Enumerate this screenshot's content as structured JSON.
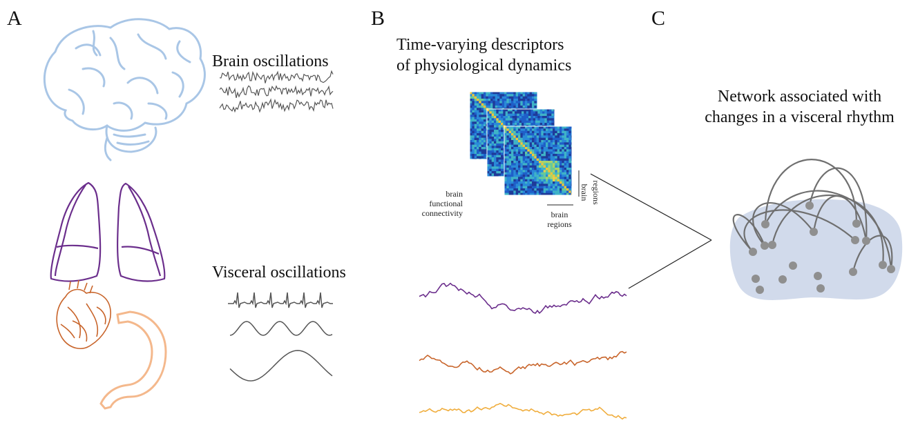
{
  "panels": {
    "a": {
      "letter": "A",
      "brain_label": "Brain oscillations",
      "visceral_label": "Visceral oscillations",
      "icons": [
        "brain-icon",
        "lungs-icon",
        "heart-icon",
        "stomach-icon"
      ]
    },
    "b": {
      "letter": "B",
      "title_line1": "Time-varying descriptors",
      "title_line2": "of physiological dynamics",
      "connectivity_label_line1": "brain",
      "connectivity_label_line2": "functional",
      "connectivity_label_line3": "connectivity",
      "axis_label_x_line1": "brain",
      "axis_label_x_line2": "regions",
      "axis_label_y_line1": "brain",
      "axis_label_y_line2": "regions"
    },
    "c": {
      "letter": "C",
      "title_line1": "Network associated with",
      "title_line2": "changes in a visceral rhythm"
    }
  },
  "colors": {
    "brain": "#a9c6e6",
    "lungs": "#6b2e8c",
    "heart": "#c8642a",
    "stomach": "#f4b88c",
    "signal_gray": "#555555",
    "trace_purple": "#6b2e8c",
    "trace_orange": "#c8642a",
    "trace_yellow": "#f0ad3c",
    "network_blob": "#c9d3e8",
    "node": "#8f8f8f",
    "edge": "#6f6f6f"
  }
}
